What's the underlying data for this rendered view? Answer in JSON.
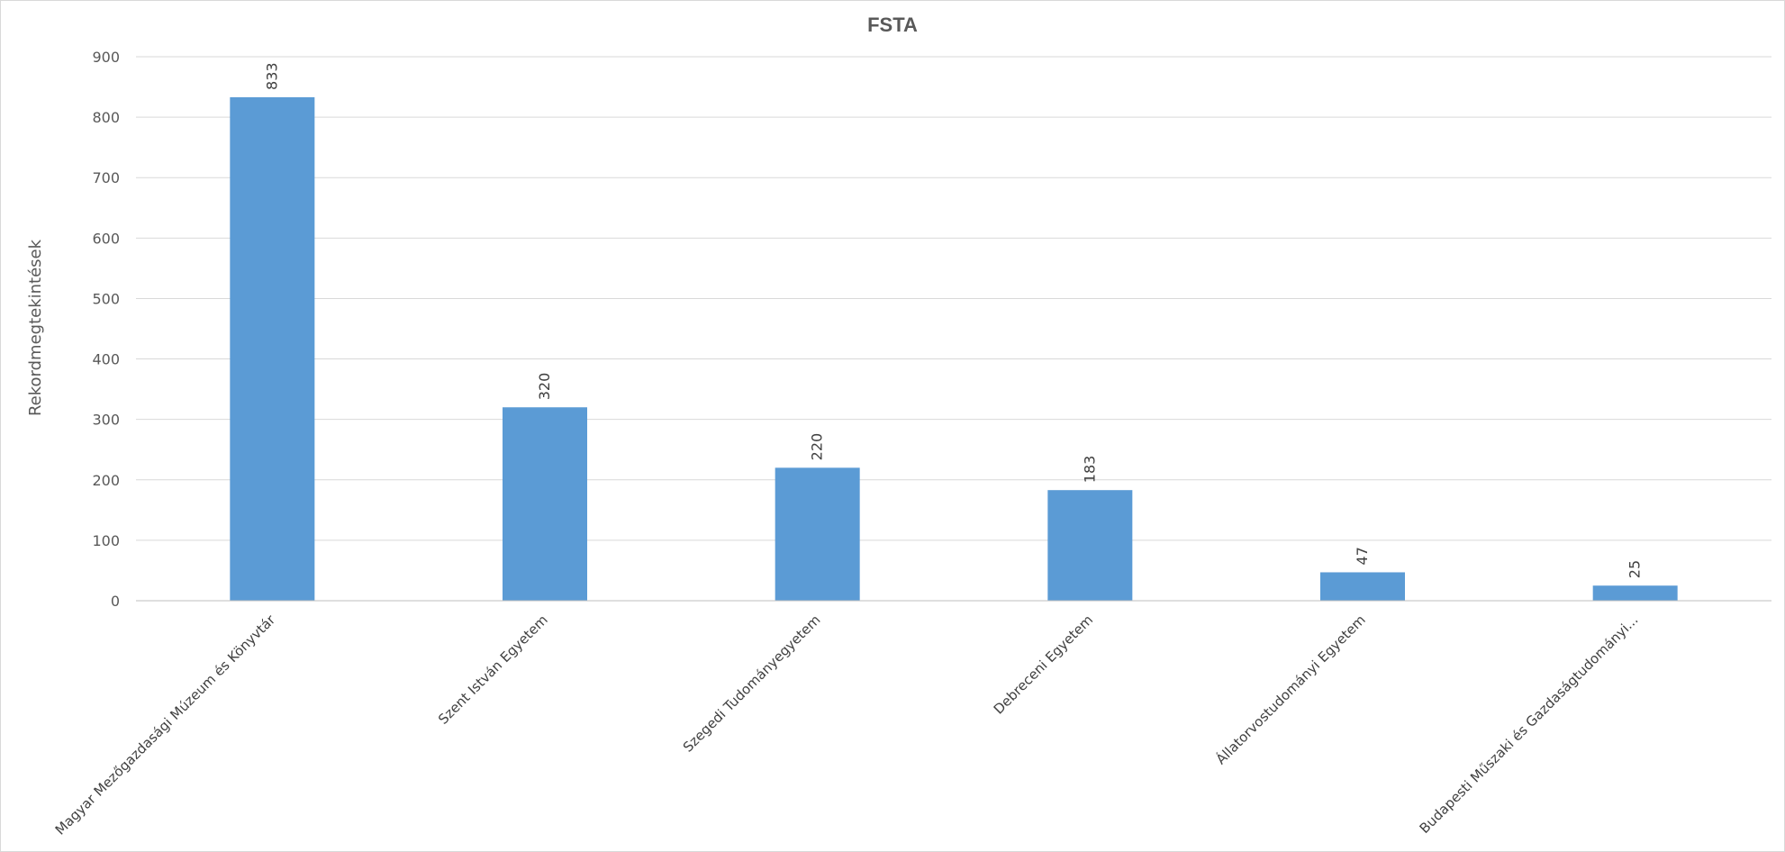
{
  "chart_data": {
    "type": "bar",
    "title": "FSTA",
    "xlabel": "",
    "ylabel": "Rekordmegtekintések",
    "categories": [
      "Magyar Mezőgazdasági Múzeum és Könyvtár",
      "Szent István Egyetem",
      "Szegedi Tudományegyetem",
      "Debreceni Egyetem",
      "Állatorvostudományi Egyetem",
      "Budapesti Műszaki és Gazdaságtudományi..."
    ],
    "values": [
      833,
      320,
      220,
      183,
      47,
      25
    ],
    "ylim": [
      0,
      900
    ],
    "yticks": [
      0,
      100,
      200,
      300,
      400,
      500,
      600,
      700,
      800,
      900
    ],
    "grid": true,
    "legend": "none",
    "bar_color": "#5B9BD5"
  }
}
